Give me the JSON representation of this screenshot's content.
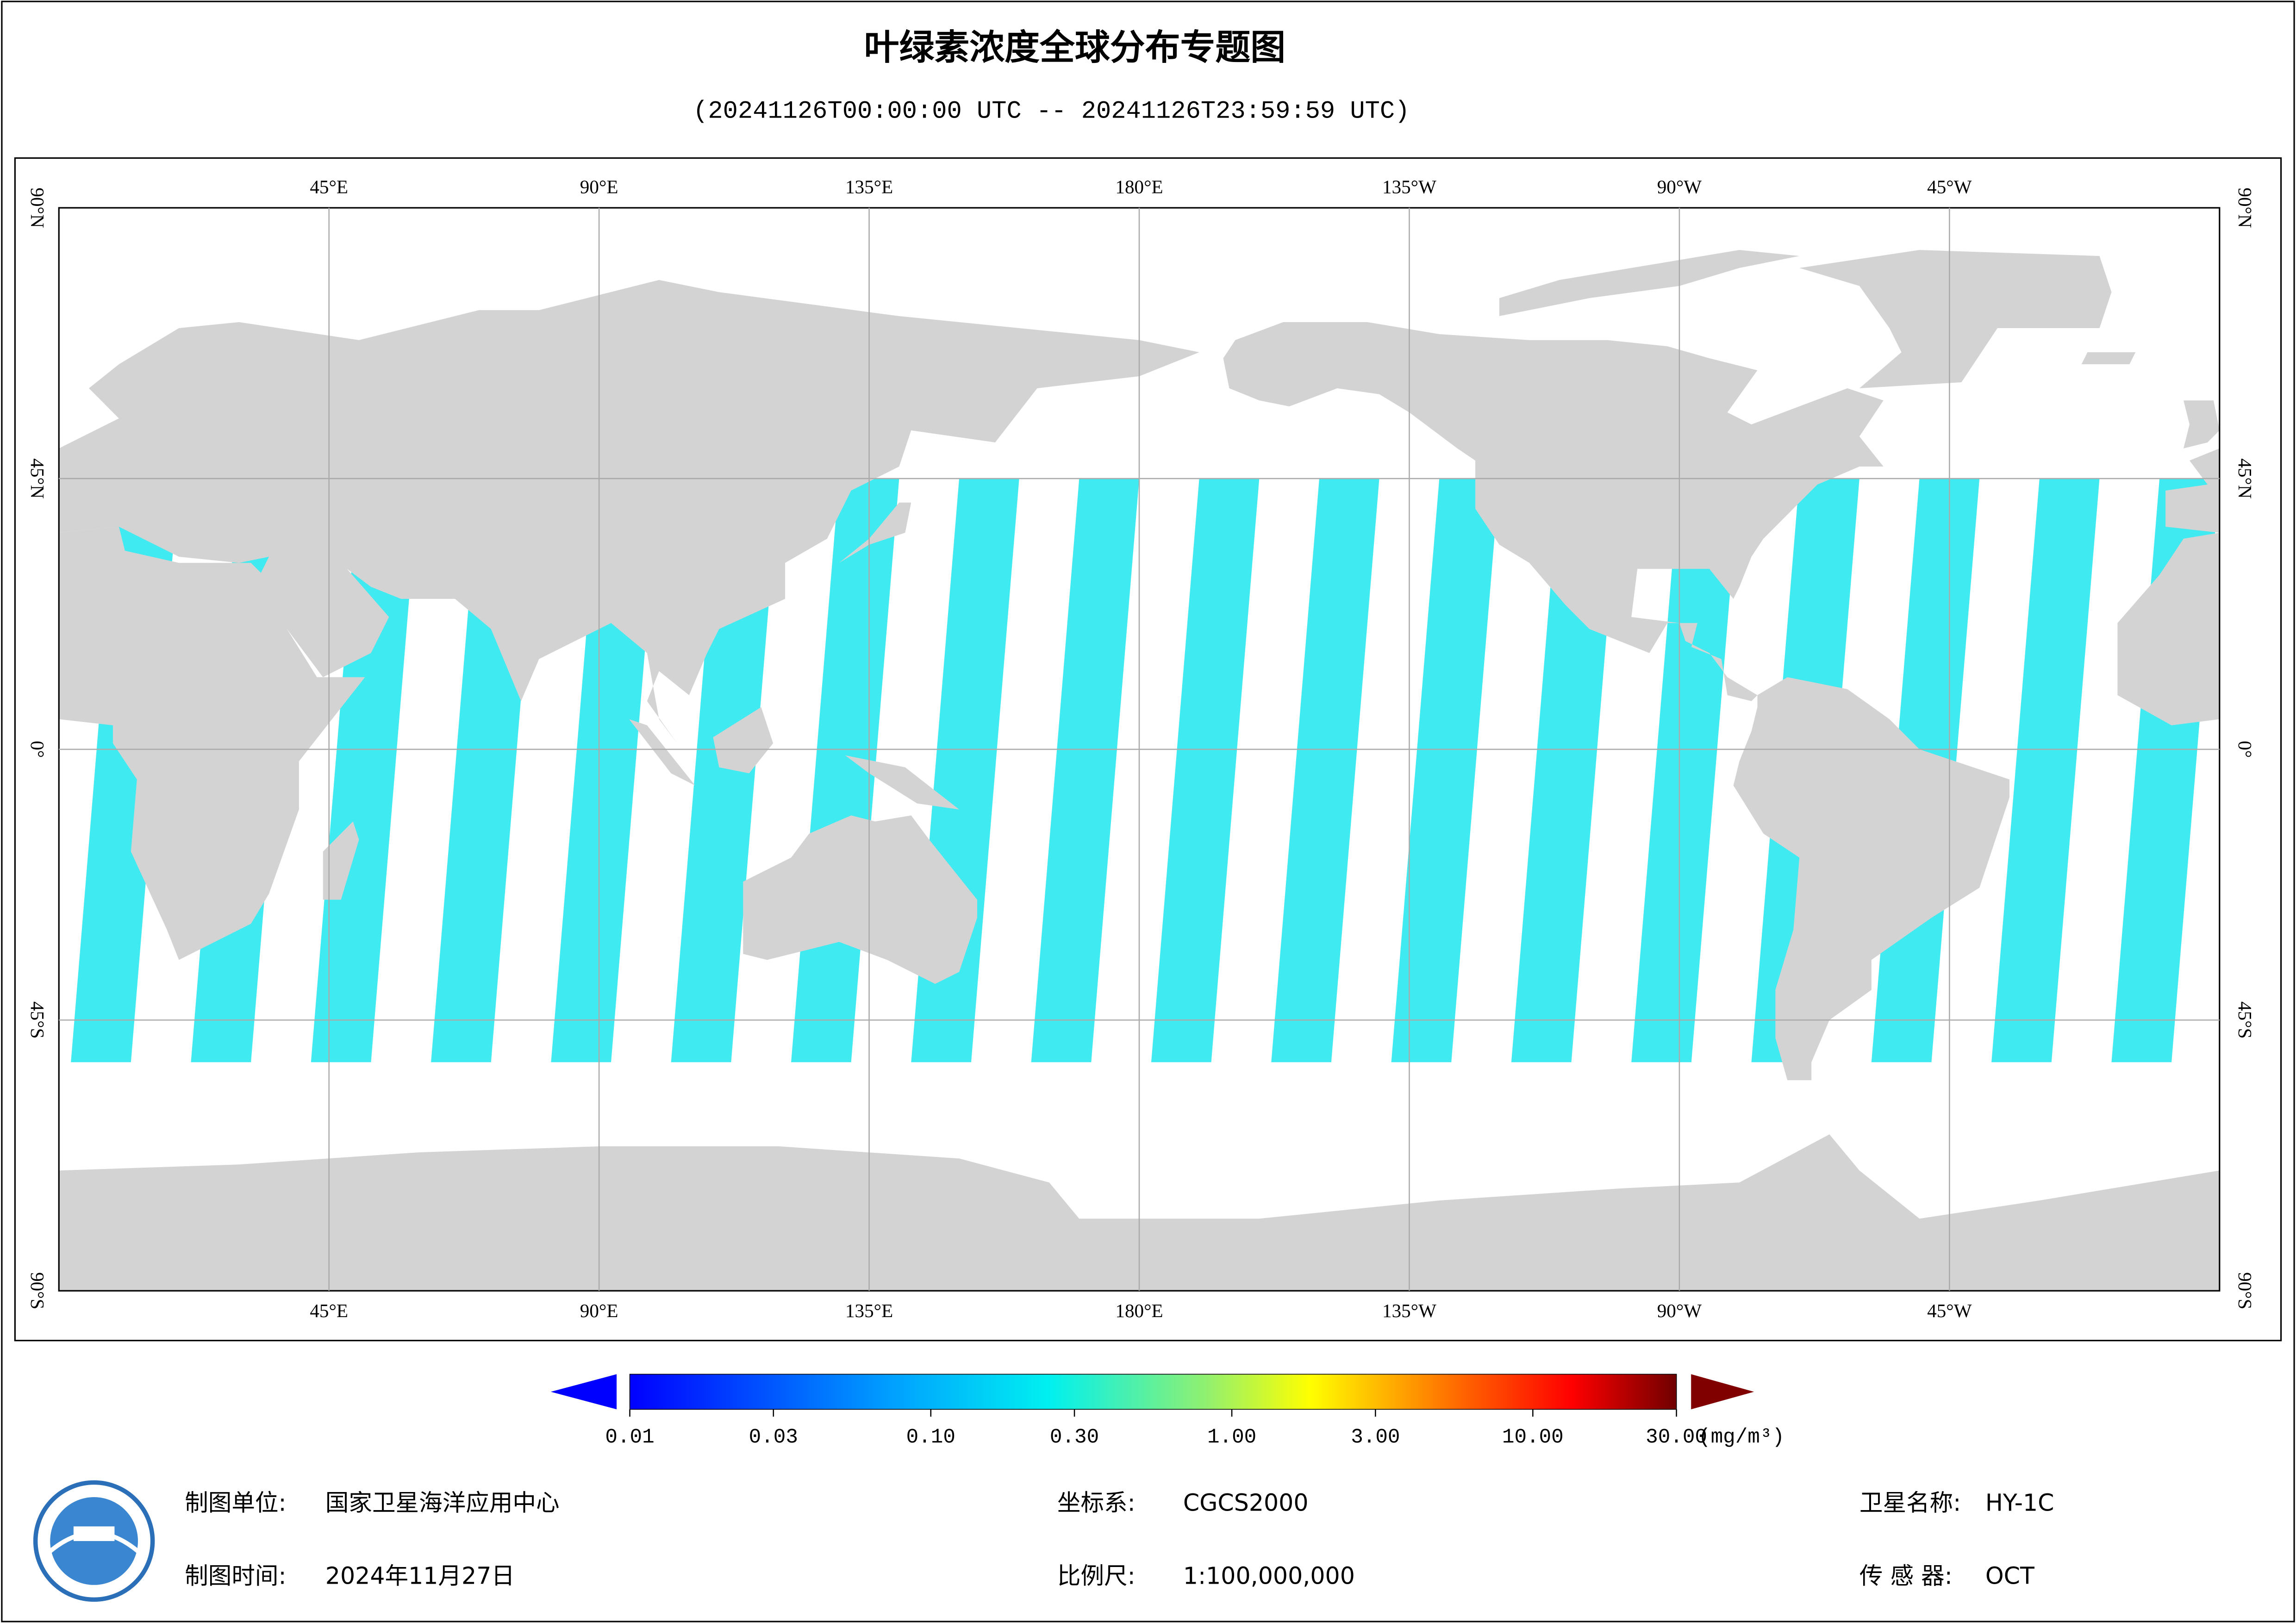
{
  "header": {
    "title": "叶绿素浓度全球分布专题图",
    "subtitle": "(20241126T00:00:00 UTC -- 20241126T23:59:59 UTC)"
  },
  "map": {
    "lon_labels": [
      "45°E",
      "90°E",
      "135°E",
      "180°E",
      "135°W",
      "90°W",
      "45°W"
    ],
    "lat_labels": [
      "90°N",
      "45°N",
      "0°",
      "45°S",
      "90°S"
    ]
  },
  "colorbar": {
    "log": true,
    "lim": [
      0.01,
      30
    ],
    "ticks": [
      0.01,
      0.03,
      {
        "value": 0.1,
        "label": "0.10"
      },
      {
        "value": 0.3,
        "label": "0.30"
      },
      {
        "value": 1,
        "label": "1.00"
      },
      {
        "value": 3,
        "label": "3.00"
      },
      {
        "value": 10,
        "label": "10.00"
      },
      {
        "value": 30,
        "label": "30.00"
      }
    ],
    "unit": "(mg/m³)"
  },
  "footer": [
    {
      "label": "制图单位:",
      "value": "国家卫星海洋应用中心"
    },
    {
      "label": "坐标系:",
      "value": "CGCS2000"
    },
    {
      "label": "卫星名称:",
      "value": "HY-1C"
    },
    {
      "label": "制图时间:",
      "value": "2024年11月27日"
    },
    {
      "label": "比例尺:",
      "value": "1:100,000,000"
    },
    {
      "label": "传 感 器:",
      "value": "OCT"
    }
  ]
}
